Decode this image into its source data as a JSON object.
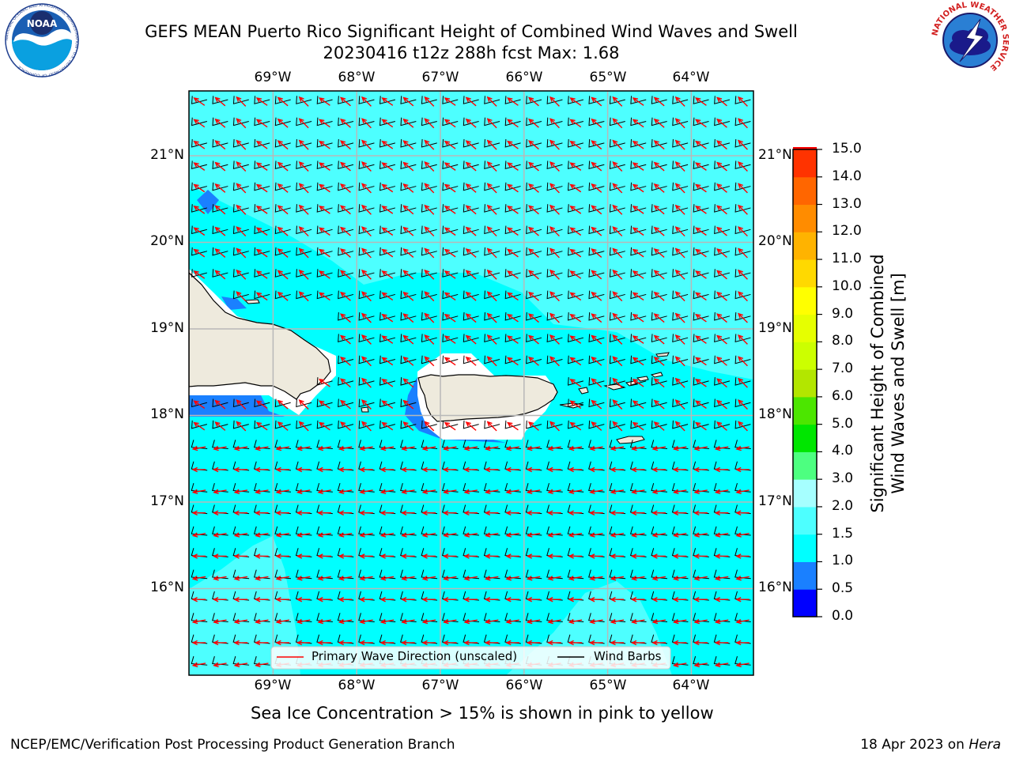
{
  "title": {
    "line1": "GEFS MEAN Puerto Rico Significant Height of Combined Wind Waves and Swell",
    "line2": "20230416 t12z 288h fcst   Max: 1.68"
  },
  "logos": {
    "noaa": "NOAA",
    "noaa_ring": "NATIONAL OCEANIC AND ATMOSPHERIC ADMINISTRATION · U.S. DEPARTMENT OF COMMERCE",
    "nws_ring": "NATIONAL WEATHER SERVICE"
  },
  "map": {
    "lon_labels": [
      "69°W",
      "68°W",
      "67°W",
      "66°W",
      "65°W",
      "64°W"
    ],
    "lat_labels": [
      "21°N",
      "20°N",
      "19°N",
      "18°N",
      "17°N",
      "16°N"
    ],
    "lon_range": [
      -70.0,
      -63.25
    ],
    "lat_range": [
      15.0,
      21.75
    ],
    "ocean_color": "#00ffff",
    "land_color": "#eeeadd"
  },
  "legend": {
    "wave_label": "Primary Wave Direction (unscaled)",
    "barb_label": "Wind Barbs",
    "wave_color": "#ff0000",
    "barb_color": "#000000"
  },
  "colorbar": {
    "label_line1": "Significant Height of Combined",
    "label_line2": "Wind Waves and Swell [m]",
    "ticks": [
      "0.0",
      "0.5",
      "1.0",
      "1.5",
      "2.0",
      "3.0",
      "4.0",
      "5.0",
      "6.0",
      "7.0",
      "8.0",
      "9.0",
      "10.0",
      "11.0",
      "12.0",
      "13.0",
      "14.0",
      "15.0"
    ],
    "colors": [
      "#0000ff",
      "#1a80ff",
      "#00ffff",
      "#4dffff",
      "#a6ffff",
      "#4dff80",
      "#00e600",
      "#4ce600",
      "#b3e600",
      "#ccff00",
      "#e6ff00",
      "#ffff00",
      "#ffd900",
      "#ffb300",
      "#ff8c00",
      "#ff6600",
      "#ff3300",
      "#ff0000"
    ]
  },
  "note": "Sea Ice Concentration > 15% is shown in pink to yellow",
  "footer": {
    "left": "NCEP/EMC/Verification Post Processing Product Generation Branch",
    "right_date": "18 Apr 2023 on",
    "right_host": "Hera"
  }
}
